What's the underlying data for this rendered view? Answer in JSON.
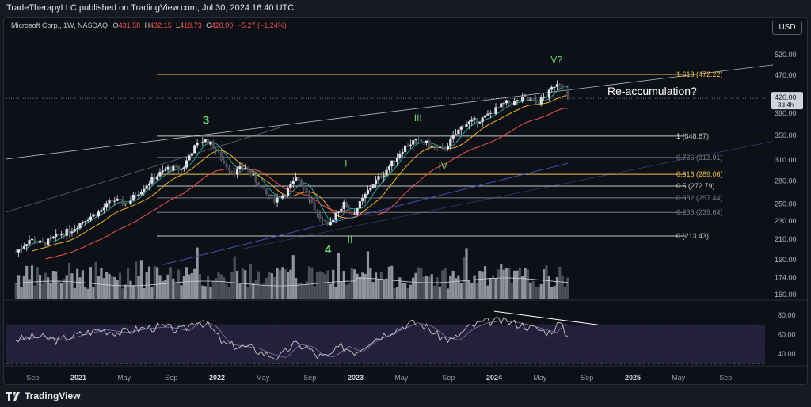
{
  "header": {
    "publisher": "TradeTherapyLLC published on TradingView.com, Jul 30, 2024 16:40 UTC"
  },
  "legend": {
    "symbol": "Microsoft Corp., 1W, NASDAQ",
    "o_label": "O",
    "o": "431.58",
    "h_label": "H",
    "h": "432.15",
    "l_label": "L",
    "l": "418.73",
    "c_label": "C",
    "c": "420.00",
    "change": "−5.27 (−1.24%)"
  },
  "currency": "USD",
  "brand": "TradingView",
  "colors": {
    "up": "#e0e3eb",
    "fib1618": "#f0c050",
    "fib618": "#f0c050",
    "fibline": "#c8c8c8",
    "wave": "#6fcf6f",
    "rsi": "#c8c8c8",
    "rsiBand": "#241f3a",
    "volume": "#9598a1",
    "ma20": "#26a69a",
    "ma50": "#f0b429",
    "ma100": "#ef5350",
    "ma200": "#3f51b5"
  },
  "chart_data": {
    "type": "candlestick",
    "price_axis": {
      "ticks": [
        520,
        470,
        420,
        390,
        350,
        310,
        280,
        250,
        230,
        210,
        190,
        174,
        160
      ],
      "scale": "log"
    },
    "rsi_axis": {
      "ticks": [
        80,
        60,
        40
      ],
      "range": [
        20,
        100
      ]
    },
    "x_axis": {
      "labels": [
        "Sep",
        "2021",
        "May",
        "Sep",
        "2022",
        "May",
        "Sep",
        "2023",
        "May",
        "Sep",
        "2024",
        "May",
        "Sep",
        "2025",
        "May",
        "Sep"
      ]
    },
    "last_price": {
      "value": "420.00",
      "countdown": "3d 4h"
    },
    "fib_levels": [
      {
        "ratio": "1.618",
        "value": "472.22",
        "price": 472.22
      },
      {
        "ratio": "1",
        "value": "348.67",
        "price": 348.67
      },
      {
        "ratio": "0.786",
        "value": "313.91",
        "price": 313.91
      },
      {
        "ratio": "0.618",
        "value": "289.06",
        "price": 289.06
      },
      {
        "ratio": "0.5",
        "value": "272.79",
        "price": 272.79
      },
      {
        "ratio": "0.382",
        "value": "257.44",
        "price": 257.44
      },
      {
        "ratio": "0.236",
        "value": "239.64",
        "price": 239.64
      },
      {
        "ratio": "0",
        "value": "213.43",
        "price": 213.43
      }
    ],
    "wave_labels": [
      {
        "text": "3",
        "price": 370,
        "date": 2021.92
      },
      {
        "text": "4",
        "price": 196,
        "date": 2022.8
      },
      {
        "text": "I",
        "price": 300,
        "date": 2022.93
      },
      {
        "text": "II",
        "price": 206,
        "date": 2022.96
      },
      {
        "text": "III",
        "price": 375,
        "date": 2023.45
      },
      {
        "text": "IV",
        "price": 296,
        "date": 2023.63
      },
      {
        "text": "V?",
        "price": 500,
        "date": 2024.45
      }
    ],
    "annotation": {
      "text": "Re-accumulation?"
    },
    "closes": [
      [
        2020.55,
        197
      ],
      [
        2020.65,
        210
      ],
      [
        2020.75,
        205
      ],
      [
        2020.85,
        214
      ],
      [
        2020.95,
        220
      ],
      [
        2021.05,
        232
      ],
      [
        2021.15,
        240
      ],
      [
        2021.25,
        255
      ],
      [
        2021.35,
        250
      ],
      [
        2021.45,
        268
      ],
      [
        2021.55,
        285
      ],
      [
        2021.65,
        298
      ],
      [
        2021.75,
        296
      ],
      [
        2021.82,
        325
      ],
      [
        2021.88,
        340
      ],
      [
        2021.92,
        342
      ],
      [
        2021.98,
        330
      ],
      [
        2022.05,
        305
      ],
      [
        2022.12,
        292
      ],
      [
        2022.2,
        300
      ],
      [
        2022.28,
        280
      ],
      [
        2022.35,
        262
      ],
      [
        2022.42,
        255
      ],
      [
        2022.5,
        265
      ],
      [
        2022.58,
        285
      ],
      [
        2022.65,
        265
      ],
      [
        2022.72,
        238
      ],
      [
        2022.8,
        222
      ],
      [
        2022.86,
        240
      ],
      [
        2022.92,
        250
      ],
      [
        2022.98,
        237
      ],
      [
        2023.05,
        255
      ],
      [
        2023.12,
        275
      ],
      [
        2023.2,
        290
      ],
      [
        2023.28,
        310
      ],
      [
        2023.35,
        330
      ],
      [
        2023.42,
        340
      ],
      [
        2023.5,
        338
      ],
      [
        2023.56,
        330
      ],
      [
        2023.63,
        325
      ],
      [
        2023.7,
        345
      ],
      [
        2023.78,
        370
      ],
      [
        2023.85,
        375
      ],
      [
        2023.92,
        380
      ],
      [
        2024.0,
        395
      ],
      [
        2024.08,
        410
      ],
      [
        2024.15,
        412
      ],
      [
        2024.22,
        420
      ],
      [
        2024.3,
        410
      ],
      [
        2024.38,
        425
      ],
      [
        2024.45,
        455
      ],
      [
        2024.5,
        445
      ],
      [
        2024.53,
        420
      ]
    ],
    "rsi": [
      [
        2020.55,
        55
      ],
      [
        2020.7,
        58
      ],
      [
        2020.85,
        54
      ],
      [
        2021.0,
        60
      ],
      [
        2021.15,
        65
      ],
      [
        2021.3,
        62
      ],
      [
        2021.45,
        66
      ],
      [
        2021.6,
        68
      ],
      [
        2021.75,
        64
      ],
      [
        2021.85,
        75
      ],
      [
        2021.95,
        68
      ],
      [
        2022.05,
        50
      ],
      [
        2022.15,
        48
      ],
      [
        2022.25,
        46
      ],
      [
        2022.35,
        40
      ],
      [
        2022.45,
        36
      ],
      [
        2022.55,
        50
      ],
      [
        2022.65,
        47
      ],
      [
        2022.72,
        38
      ],
      [
        2022.8,
        37
      ],
      [
        2022.9,
        48
      ],
      [
        2023.0,
        42
      ],
      [
        2023.1,
        53
      ],
      [
        2023.2,
        60
      ],
      [
        2023.3,
        66
      ],
      [
        2023.4,
        72
      ],
      [
        2023.5,
        69
      ],
      [
        2023.6,
        58
      ],
      [
        2023.7,
        54
      ],
      [
        2023.8,
        66
      ],
      [
        2023.9,
        72
      ],
      [
        2024.0,
        74
      ],
      [
        2024.1,
        73
      ],
      [
        2024.2,
        70
      ],
      [
        2024.3,
        66
      ],
      [
        2024.4,
        62
      ],
      [
        2024.47,
        72
      ],
      [
        2024.53,
        58
      ]
    ],
    "volume_range": [
      0,
      1
    ]
  }
}
